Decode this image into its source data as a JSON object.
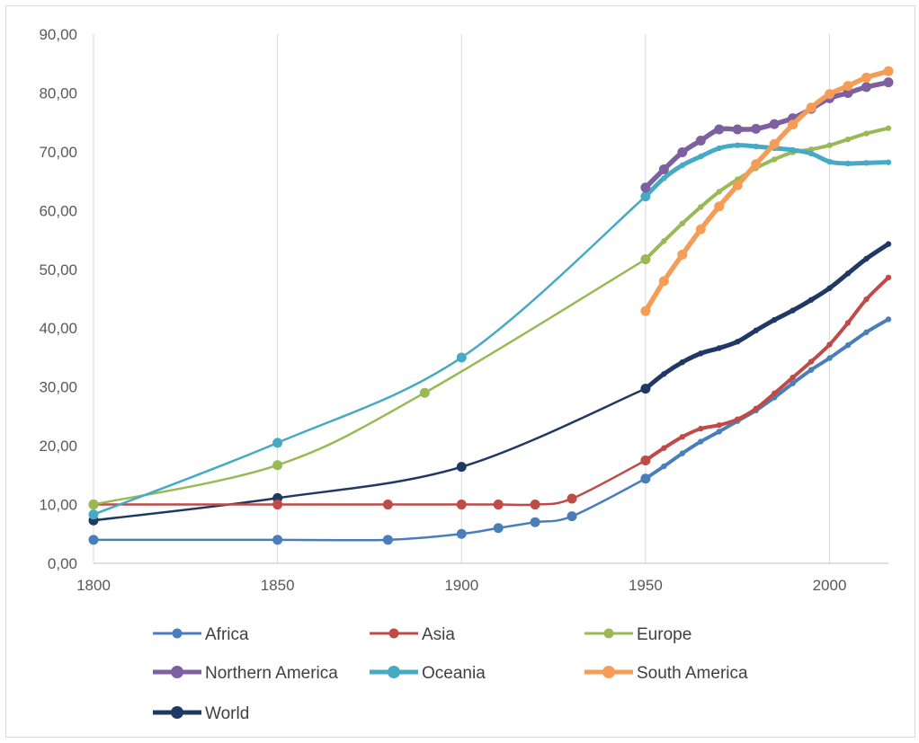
{
  "chart_data": {
    "type": "line",
    "title": "",
    "xlabel": "",
    "ylabel": "",
    "xlim": [
      1800,
      2016
    ],
    "ylim": [
      0,
      90
    ],
    "x_ticks": [
      1800,
      1850,
      1900,
      1950,
      2000
    ],
    "x_tick_labels": [
      "1800",
      "1850",
      "1900",
      "1950",
      "2000"
    ],
    "y_ticks": [
      0,
      10,
      20,
      30,
      40,
      50,
      60,
      70,
      80,
      90
    ],
    "y_tick_labels": [
      "0,00",
      "10,00",
      "20,00",
      "30,00",
      "40,00",
      "50,00",
      "60,00",
      "70,00",
      "80,00",
      "90,00"
    ],
    "grid": "vertical",
    "legend_position": "bottom",
    "series": [
      {
        "name": "Africa",
        "color": "#4a7ebb",
        "style": "thin-markers",
        "points": [
          [
            1800,
            4
          ],
          [
            1850,
            4
          ],
          [
            1880,
            4
          ],
          [
            1900,
            5
          ],
          [
            1910,
            6
          ],
          [
            1920,
            7
          ],
          [
            1930,
            8
          ],
          [
            1950,
            14.4
          ],
          [
            1955,
            16.5
          ],
          [
            1960,
            18.7
          ],
          [
            1965,
            20.7
          ],
          [
            1970,
            22.4
          ],
          [
            1975,
            24.2
          ],
          [
            1980,
            26.0
          ],
          [
            1985,
            28.2
          ],
          [
            1990,
            30.6
          ],
          [
            1995,
            32.9
          ],
          [
            2000,
            34.9
          ],
          [
            2005,
            37.1
          ],
          [
            2010,
            39.3
          ],
          [
            2016,
            41.5
          ]
        ]
      },
      {
        "name": "Asia",
        "color": "#be4b48",
        "style": "thin-markers",
        "points": [
          [
            1800,
            10
          ],
          [
            1850,
            10
          ],
          [
            1880,
            10
          ],
          [
            1900,
            10
          ],
          [
            1910,
            10
          ],
          [
            1920,
            10
          ],
          [
            1930,
            11
          ],
          [
            1950,
            17.5
          ],
          [
            1955,
            19.6
          ],
          [
            1960,
            21.5
          ],
          [
            1965,
            22.9
          ],
          [
            1970,
            23.5
          ],
          [
            1975,
            24.5
          ],
          [
            1980,
            26.3
          ],
          [
            1985,
            28.9
          ],
          [
            1990,
            31.6
          ],
          [
            1995,
            34.3
          ],
          [
            2000,
            37.2
          ],
          [
            2005,
            40.9
          ],
          [
            2010,
            44.9
          ],
          [
            2016,
            48.6
          ]
        ]
      },
      {
        "name": "Europe",
        "color": "#98b954",
        "style": "thin-markers",
        "points": [
          [
            1800,
            10
          ],
          [
            1850,
            16.7
          ],
          [
            1890,
            29
          ],
          [
            1950,
            51.7
          ],
          [
            1955,
            54.8
          ],
          [
            1960,
            57.8
          ],
          [
            1965,
            60.6
          ],
          [
            1970,
            63.2
          ],
          [
            1975,
            65.3
          ],
          [
            1980,
            67.2
          ],
          [
            1985,
            68.7
          ],
          [
            1990,
            69.9
          ],
          [
            1995,
            70.4
          ],
          [
            2000,
            71.1
          ],
          [
            2005,
            72.1
          ],
          [
            2010,
            73.1
          ],
          [
            2016,
            74.0
          ]
        ]
      },
      {
        "name": "Northern America",
        "color": "#7d60a0",
        "style": "thick",
        "points": [
          [
            1950,
            63.9
          ],
          [
            1955,
            67.0
          ],
          [
            1960,
            69.9
          ],
          [
            1965,
            71.9
          ],
          [
            1970,
            73.8
          ],
          [
            1975,
            73.8
          ],
          [
            1980,
            73.9
          ],
          [
            1985,
            74.7
          ],
          [
            1990,
            75.7
          ],
          [
            1995,
            77.3
          ],
          [
            2000,
            79.1
          ],
          [
            2005,
            80.0
          ],
          [
            2010,
            81.0
          ],
          [
            2016,
            81.8
          ]
        ]
      },
      {
        "name": "Oceania",
        "color": "#46aac5",
        "style": "mixed",
        "points": [
          [
            1800,
            8.3
          ],
          [
            1850,
            20.5
          ],
          [
            1900,
            35
          ],
          [
            1950,
            62.4
          ],
          [
            1955,
            65.5
          ],
          [
            1960,
            67.7
          ],
          [
            1965,
            69.2
          ],
          [
            1970,
            70.6
          ],
          [
            1975,
            71.1
          ],
          [
            1980,
            70.9
          ],
          [
            1985,
            70.6
          ],
          [
            1990,
            70.3
          ],
          [
            1995,
            69.7
          ],
          [
            2000,
            68.3
          ],
          [
            2005,
            68.0
          ],
          [
            2010,
            68.1
          ],
          [
            2016,
            68.2
          ]
        ]
      },
      {
        "name": "South America",
        "color": "#f59d56",
        "style": "thick",
        "points": [
          [
            1950,
            42.9
          ],
          [
            1955,
            48.0
          ],
          [
            1960,
            52.5
          ],
          [
            1965,
            56.8
          ],
          [
            1970,
            60.7
          ],
          [
            1975,
            64.3
          ],
          [
            1980,
            67.9
          ],
          [
            1985,
            71.3
          ],
          [
            1990,
            74.6
          ],
          [
            1995,
            77.5
          ],
          [
            2000,
            79.8
          ],
          [
            2005,
            81.2
          ],
          [
            2010,
            82.6
          ],
          [
            2016,
            83.7
          ]
        ]
      },
      {
        "name": "World",
        "color": "#203864",
        "style": "mixed",
        "points": [
          [
            1800,
            7.3
          ],
          [
            1850,
            11.1
          ],
          [
            1900,
            16.4
          ],
          [
            1950,
            29.7
          ],
          [
            1955,
            32.2
          ],
          [
            1960,
            34.2
          ],
          [
            1965,
            35.7
          ],
          [
            1970,
            36.6
          ],
          [
            1975,
            37.7
          ],
          [
            1980,
            39.6
          ],
          [
            1985,
            41.4
          ],
          [
            1990,
            43.0
          ],
          [
            1995,
            44.8
          ],
          [
            2000,
            46.8
          ],
          [
            2005,
            49.3
          ],
          [
            2010,
            51.8
          ],
          [
            2016,
            54.3
          ]
        ]
      }
    ]
  }
}
